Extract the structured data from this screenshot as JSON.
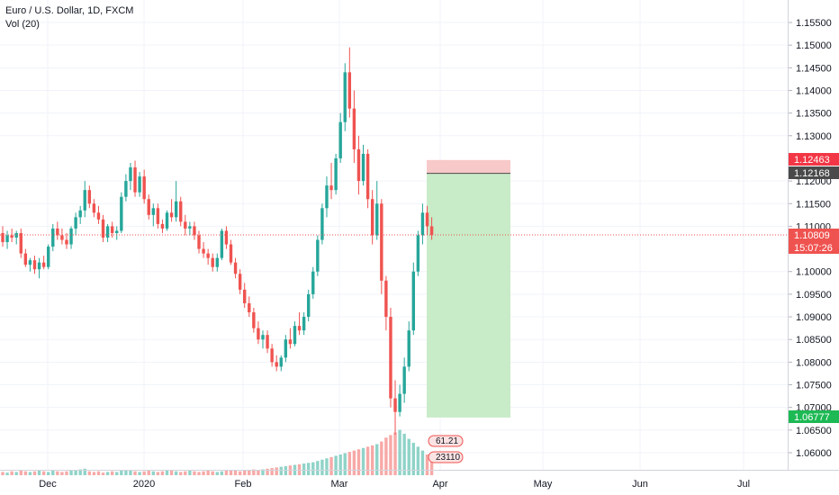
{
  "header": {
    "title": "Euro / U.S. Dollar, 1D, FXCM",
    "indicator": "Vol (20)"
  },
  "price_axis": {
    "ticks": [
      "1.15500",
      "1.15000",
      "1.14500",
      "1.14000",
      "1.13500",
      "1.13000",
      "1.12000",
      "1.11500",
      "1.11000",
      "1.10000",
      "1.09500",
      "1.09000",
      "1.08500",
      "1.08000",
      "1.07500",
      "1.07000",
      "1.06500",
      "1.06000"
    ],
    "tags": {
      "stop": "1.12463",
      "entry": "1.12168",
      "last": "1.10809",
      "countdown": "15:07:26",
      "target": "1.06777"
    }
  },
  "time_axis": {
    "labels": [
      "Dec",
      "2020",
      "Feb",
      "Mar",
      "Apr",
      "May",
      "Jun",
      "Jul"
    ]
  },
  "volume_labels": {
    "upper": "61.21",
    "lower": "23110"
  },
  "colors": {
    "up": "#26a69a",
    "down": "#ef5350",
    "up_volume": "#8fd3c8",
    "down_volume": "#f7a9a7",
    "grid": "#f0f3fa",
    "last_price": "#ef5350",
    "target_zone": "#c8ebc8",
    "stop_zone": "#f8c9c9",
    "entry_tag": "#4a4a4a",
    "target_tag": "#1db954",
    "stop_tag": "#f23645"
  },
  "chart_data": {
    "type": "candlestick",
    "title": "Euro / U.S. Dollar, 1D, FXCM",
    "y_range": [
      1.0555,
      1.1575
    ],
    "grid": true,
    "x_labels": [
      "Dec",
      "2020",
      "Feb",
      "Mar",
      "Apr",
      "May",
      "Jun",
      "Jul"
    ],
    "ohlc": [
      [
        1.1085,
        1.11,
        1.1055,
        1.1065
      ],
      [
        1.1065,
        1.109,
        1.105,
        1.108
      ],
      [
        1.108,
        1.1095,
        1.1065,
        1.1075
      ],
      [
        1.1075,
        1.109,
        1.106,
        1.1085
      ],
      [
        1.1085,
        1.1095,
        1.103,
        1.104
      ],
      [
        1.104,
        1.105,
        1.101,
        1.1015
      ],
      [
        1.1015,
        1.103,
        1.1,
        1.1025
      ],
      [
        1.1025,
        1.1035,
        1.0995,
        1.1005
      ],
      [
        1.1005,
        1.103,
        1.0985,
        1.102
      ],
      [
        1.102,
        1.1035,
        1.1005,
        1.101
      ],
      [
        1.101,
        1.106,
        1.1005,
        1.1055
      ],
      [
        1.1055,
        1.1105,
        1.1045,
        1.1095
      ],
      [
        1.1095,
        1.111,
        1.107,
        1.108
      ],
      [
        1.108,
        1.1095,
        1.106,
        1.107
      ],
      [
        1.107,
        1.1085,
        1.105,
        1.106
      ],
      [
        1.106,
        1.11,
        1.105,
        1.1095
      ],
      [
        1.1095,
        1.113,
        1.108,
        1.112
      ],
      [
        1.112,
        1.1145,
        1.1105,
        1.1135
      ],
      [
        1.1135,
        1.12,
        1.112,
        1.118
      ],
      [
        1.118,
        1.119,
        1.114,
        1.115
      ],
      [
        1.115,
        1.116,
        1.112,
        1.113
      ],
      [
        1.113,
        1.1145,
        1.1105,
        1.1115
      ],
      [
        1.1115,
        1.1125,
        1.1065,
        1.1075
      ],
      [
        1.1075,
        1.1105,
        1.1065,
        1.11
      ],
      [
        1.11,
        1.111,
        1.1075,
        1.1085
      ],
      [
        1.1085,
        1.11,
        1.107,
        1.109
      ],
      [
        1.109,
        1.1175,
        1.1085,
        1.1165
      ],
      [
        1.1165,
        1.1215,
        1.1155,
        1.12
      ],
      [
        1.12,
        1.124,
        1.118,
        1.123
      ],
      [
        1.123,
        1.1245,
        1.1165,
        1.1175
      ],
      [
        1.1175,
        1.122,
        1.1165,
        1.121
      ],
      [
        1.121,
        1.1225,
        1.115,
        1.116
      ],
      [
        1.116,
        1.117,
        1.1115,
        1.1125
      ],
      [
        1.1125,
        1.115,
        1.11,
        1.114
      ],
      [
        1.114,
        1.115,
        1.1095,
        1.1105
      ],
      [
        1.1105,
        1.1115,
        1.1085,
        1.1095
      ],
      [
        1.1095,
        1.1135,
        1.109,
        1.113
      ],
      [
        1.113,
        1.116,
        1.111,
        1.112
      ],
      [
        1.112,
        1.12,
        1.111,
        1.1155
      ],
      [
        1.1155,
        1.1165,
        1.11,
        1.111
      ],
      [
        1.111,
        1.1125,
        1.108,
        1.1095
      ],
      [
        1.1095,
        1.111,
        1.108,
        1.11
      ],
      [
        1.11,
        1.111,
        1.107,
        1.108
      ],
      [
        1.108,
        1.109,
        1.104,
        1.105
      ],
      [
        1.105,
        1.1065,
        1.103,
        1.104
      ],
      [
        1.104,
        1.105,
        1.1015,
        1.103
      ],
      [
        1.103,
        1.104,
        1.1,
        1.101
      ],
      [
        1.101,
        1.104,
        1.1,
        1.103
      ],
      [
        1.103,
        1.1095,
        1.1025,
        1.109
      ],
      [
        1.109,
        1.11,
        1.105,
        1.106
      ],
      [
        1.106,
        1.107,
        1.1015,
        1.102
      ],
      [
        1.102,
        1.103,
        1.0985,
        1.0995
      ],
      [
        1.0995,
        1.1005,
        1.095,
        1.096
      ],
      [
        1.096,
        1.0975,
        1.092,
        1.093
      ],
      [
        1.093,
        1.0945,
        1.09,
        1.091
      ],
      [
        1.091,
        1.092,
        1.0865,
        1.0875
      ],
      [
        1.0875,
        1.089,
        1.084,
        1.085
      ],
      [
        1.085,
        1.087,
        1.083,
        1.086
      ],
      [
        1.086,
        1.087,
        1.082,
        1.083
      ],
      [
        1.083,
        1.084,
        1.079,
        1.08
      ],
      [
        1.08,
        1.0815,
        1.078,
        1.079
      ],
      [
        1.079,
        1.0815,
        1.078,
        1.081
      ],
      [
        1.081,
        1.086,
        1.08,
        1.085
      ],
      [
        1.085,
        1.0875,
        1.083,
        1.084
      ],
      [
        1.084,
        1.089,
        1.0835,
        1.088
      ],
      [
        1.088,
        1.091,
        1.086,
        1.087
      ],
      [
        1.087,
        1.091,
        1.086,
        1.09
      ],
      [
        1.09,
        1.096,
        1.089,
        1.095
      ],
      [
        1.095,
        1.101,
        1.094,
        1.1
      ],
      [
        1.1,
        1.108,
        1.099,
        1.107
      ],
      [
        1.107,
        1.115,
        1.106,
        1.114
      ],
      [
        1.114,
        1.121,
        1.112,
        1.119
      ],
      [
        1.119,
        1.124,
        1.116,
        1.118
      ],
      [
        1.118,
        1.126,
        1.117,
        1.125
      ],
      [
        1.125,
        1.135,
        1.124,
        1.133
      ],
      [
        1.133,
        1.146,
        1.131,
        1.144
      ],
      [
        1.144,
        1.1495,
        1.134,
        1.136
      ],
      [
        1.136,
        1.14,
        1.124,
        1.127
      ],
      [
        1.127,
        1.13,
        1.117,
        1.12
      ],
      [
        1.12,
        1.128,
        1.119,
        1.126
      ],
      [
        1.126,
        1.127,
        1.114,
        1.116
      ],
      [
        1.116,
        1.118,
        1.106,
        1.108
      ],
      [
        1.108,
        1.12,
        1.107,
        1.115
      ],
      [
        1.115,
        1.116,
        1.095,
        1.098
      ],
      [
        1.098,
        1.099,
        1.087,
        1.09
      ],
      [
        1.09,
        1.092,
        1.07,
        1.072
      ],
      [
        1.072,
        1.076,
        1.064,
        1.069
      ],
      [
        1.069,
        1.075,
        1.068,
        1.073
      ],
      [
        1.073,
        1.081,
        1.071,
        1.079
      ],
      [
        1.079,
        1.089,
        1.078,
        1.087
      ],
      [
        1.087,
        1.102,
        1.086,
        1.1
      ],
      [
        1.1,
        1.109,
        1.099,
        1.108
      ],
      [
        1.108,
        1.115,
        1.106,
        1.113
      ],
      [
        1.113,
        1.1145,
        1.108,
        1.11
      ],
      [
        1.11,
        1.112,
        1.107,
        1.1081
      ]
    ],
    "volume": [
      5,
      4,
      6,
      5,
      7,
      6,
      5,
      6,
      7,
      6,
      5,
      8,
      6,
      5,
      6,
      7,
      8,
      9,
      10,
      6,
      5,
      6,
      4,
      5,
      6,
      5,
      7,
      8,
      7,
      6,
      5,
      6,
      7,
      6,
      5,
      6,
      7,
      8,
      6,
      5,
      6,
      7,
      6,
      5,
      6,
      7,
      6,
      5,
      6,
      7,
      8,
      7,
      6,
      8,
      7,
      9,
      8,
      9,
      10,
      11,
      12,
      13,
      14,
      15,
      16,
      17,
      18,
      19,
      20,
      22,
      24,
      26,
      28,
      30,
      32,
      34,
      36,
      38,
      40,
      42,
      44,
      46,
      48,
      52,
      58,
      62,
      66,
      70,
      64,
      56,
      50,
      44,
      38,
      32,
      26
    ],
    "position": {
      "type": "short",
      "entry": 1.12168,
      "stop": 1.12463,
      "target": 1.06777,
      "last_price": 1.10809
    }
  }
}
